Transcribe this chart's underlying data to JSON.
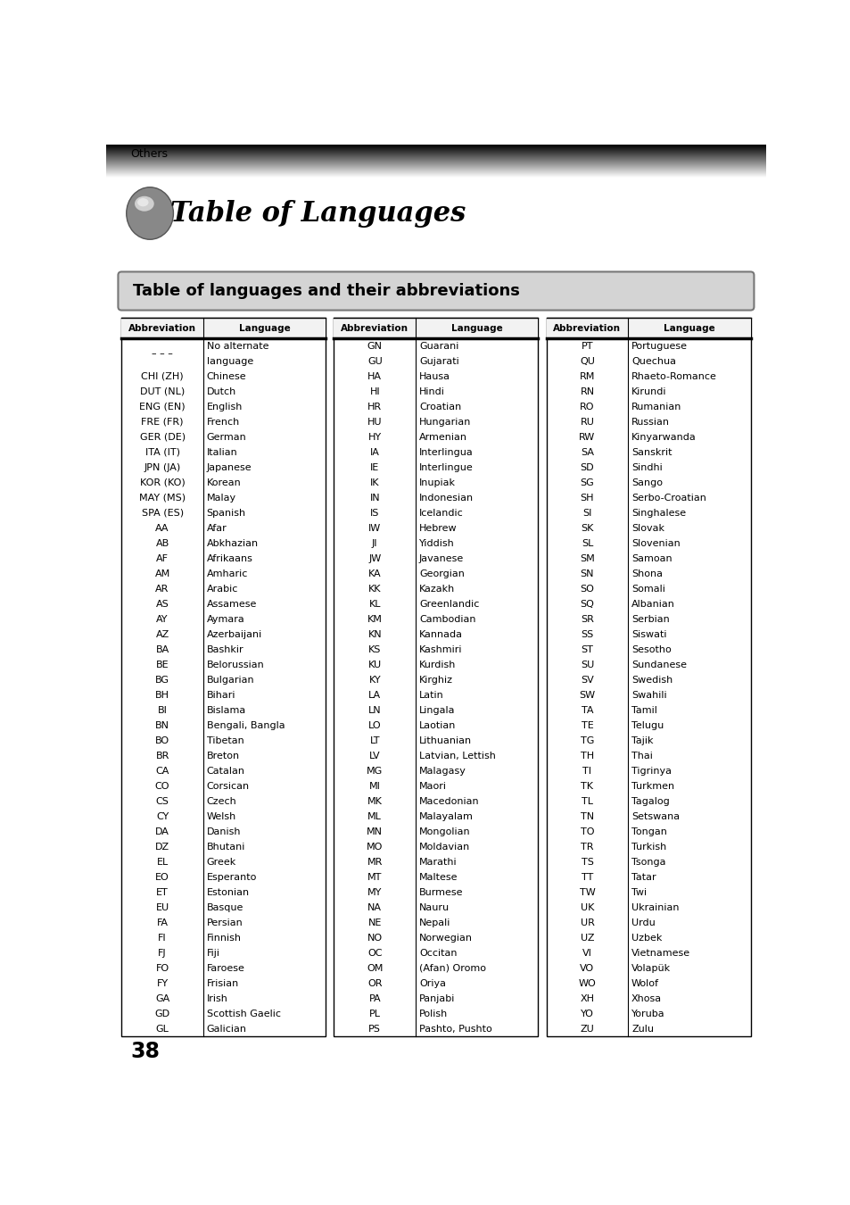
{
  "page_bg": "#ffffff",
  "others_label": "Others",
  "page_number": "38",
  "title_section": "Table of Languages",
  "subtitle": "Table of languages and their abbreviations",
  "col1_data": [
    [
      "– – –",
      "No alternate\nlanguage"
    ],
    [
      "CHI (ZH)",
      "Chinese"
    ],
    [
      "DUT (NL)",
      "Dutch"
    ],
    [
      "ENG (EN)",
      "English"
    ],
    [
      "FRE (FR)",
      "French"
    ],
    [
      "GER (DE)",
      "German"
    ],
    [
      "ITA (IT)",
      "Italian"
    ],
    [
      "JPN (JA)",
      "Japanese"
    ],
    [
      "KOR (KO)",
      "Korean"
    ],
    [
      "MAY (MS)",
      "Malay"
    ],
    [
      "SPA (ES)",
      "Spanish"
    ],
    [
      "AA",
      "Afar"
    ],
    [
      "AB",
      "Abkhazian"
    ],
    [
      "AF",
      "Afrikaans"
    ],
    [
      "AM",
      "Amharic"
    ],
    [
      "AR",
      "Arabic"
    ],
    [
      "AS",
      "Assamese"
    ],
    [
      "AY",
      "Aymara"
    ],
    [
      "AZ",
      "Azerbaijani"
    ],
    [
      "BA",
      "Bashkir"
    ],
    [
      "BE",
      "Belorussian"
    ],
    [
      "BG",
      "Bulgarian"
    ],
    [
      "BH",
      "Bihari"
    ],
    [
      "BI",
      "Bislama"
    ],
    [
      "BN",
      "Bengali, Bangla"
    ],
    [
      "BO",
      "Tibetan"
    ],
    [
      "BR",
      "Breton"
    ],
    [
      "CA",
      "Catalan"
    ],
    [
      "CO",
      "Corsican"
    ],
    [
      "CS",
      "Czech"
    ],
    [
      "CY",
      "Welsh"
    ],
    [
      "DA",
      "Danish"
    ],
    [
      "DZ",
      "Bhutani"
    ],
    [
      "EL",
      "Greek"
    ],
    [
      "EO",
      "Esperanto"
    ],
    [
      "ET",
      "Estonian"
    ],
    [
      "EU",
      "Basque"
    ],
    [
      "FA",
      "Persian"
    ],
    [
      "FI",
      "Finnish"
    ],
    [
      "FJ",
      "Fiji"
    ],
    [
      "FO",
      "Faroese"
    ],
    [
      "FY",
      "Frisian"
    ],
    [
      "GA",
      "Irish"
    ],
    [
      "GD",
      "Scottish Gaelic"
    ],
    [
      "GL",
      "Galician"
    ]
  ],
  "col2_data": [
    [
      "GN",
      "Guarani"
    ],
    [
      "GU",
      "Gujarati"
    ],
    [
      "HA",
      "Hausa"
    ],
    [
      "HI",
      "Hindi"
    ],
    [
      "HR",
      "Croatian"
    ],
    [
      "HU",
      "Hungarian"
    ],
    [
      "HY",
      "Armenian"
    ],
    [
      "IA",
      "Interlingua"
    ],
    [
      "IE",
      "Interlingue"
    ],
    [
      "IK",
      "Inupiak"
    ],
    [
      "IN",
      "Indonesian"
    ],
    [
      "IS",
      "Icelandic"
    ],
    [
      "IW",
      "Hebrew"
    ],
    [
      "JI",
      "Yiddish"
    ],
    [
      "JW",
      "Javanese"
    ],
    [
      "KA",
      "Georgian"
    ],
    [
      "KK",
      "Kazakh"
    ],
    [
      "KL",
      "Greenlandic"
    ],
    [
      "KM",
      "Cambodian"
    ],
    [
      "KN",
      "Kannada"
    ],
    [
      "KS",
      "Kashmiri"
    ],
    [
      "KU",
      "Kurdish"
    ],
    [
      "KY",
      "Kirghiz"
    ],
    [
      "LA",
      "Latin"
    ],
    [
      "LN",
      "Lingala"
    ],
    [
      "LO",
      "Laotian"
    ],
    [
      "LT",
      "Lithuanian"
    ],
    [
      "LV",
      "Latvian, Lettish"
    ],
    [
      "MG",
      "Malagasy"
    ],
    [
      "MI",
      "Maori"
    ],
    [
      "MK",
      "Macedonian"
    ],
    [
      "ML",
      "Malayalam"
    ],
    [
      "MN",
      "Mongolian"
    ],
    [
      "MO",
      "Moldavian"
    ],
    [
      "MR",
      "Marathi"
    ],
    [
      "MT",
      "Maltese"
    ],
    [
      "MY",
      "Burmese"
    ],
    [
      "NA",
      "Nauru"
    ],
    [
      "NE",
      "Nepali"
    ],
    [
      "NO",
      "Norwegian"
    ],
    [
      "OC",
      "Occitan"
    ],
    [
      "OM",
      "(Afan) Oromo"
    ],
    [
      "OR",
      "Oriya"
    ],
    [
      "PA",
      "Panjabi"
    ],
    [
      "PL",
      "Polish"
    ],
    [
      "PS",
      "Pashto, Pushto"
    ]
  ],
  "col3_data": [
    [
      "PT",
      "Portuguese"
    ],
    [
      "QU",
      "Quechua"
    ],
    [
      "RM",
      "Rhaeto-Romance"
    ],
    [
      "RN",
      "Kirundi"
    ],
    [
      "RO",
      "Rumanian"
    ],
    [
      "RU",
      "Russian"
    ],
    [
      "RW",
      "Kinyarwanda"
    ],
    [
      "SA",
      "Sanskrit"
    ],
    [
      "SD",
      "Sindhi"
    ],
    [
      "SG",
      "Sango"
    ],
    [
      "SH",
      "Serbo-Croatian"
    ],
    [
      "SI",
      "Singhalese"
    ],
    [
      "SK",
      "Slovak"
    ],
    [
      "SL",
      "Slovenian"
    ],
    [
      "SM",
      "Samoan"
    ],
    [
      "SN",
      "Shona"
    ],
    [
      "SO",
      "Somali"
    ],
    [
      "SQ",
      "Albanian"
    ],
    [
      "SR",
      "Serbian"
    ],
    [
      "SS",
      "Siswati"
    ],
    [
      "ST",
      "Sesotho"
    ],
    [
      "SU",
      "Sundanese"
    ],
    [
      "SV",
      "Swedish"
    ],
    [
      "SW",
      "Swahili"
    ],
    [
      "TA",
      "Tamil"
    ],
    [
      "TE",
      "Telugu"
    ],
    [
      "TG",
      "Tajik"
    ],
    [
      "TH",
      "Thai"
    ],
    [
      "TI",
      "Tigrinya"
    ],
    [
      "TK",
      "Turkmen"
    ],
    [
      "TL",
      "Tagalog"
    ],
    [
      "TN",
      "Setswana"
    ],
    [
      "TO",
      "Tongan"
    ],
    [
      "TR",
      "Turkish"
    ],
    [
      "TS",
      "Tsonga"
    ],
    [
      "TT",
      "Tatar"
    ],
    [
      "TW",
      "Twi"
    ],
    [
      "UK",
      "Ukrainian"
    ],
    [
      "UR",
      "Urdu"
    ],
    [
      "UZ",
      "Uzbek"
    ],
    [
      "VI",
      "Vietnamese"
    ],
    [
      "VO",
      "Volapük"
    ],
    [
      "WO",
      "Wolof"
    ],
    [
      "XH",
      "Xhosa"
    ],
    [
      "YO",
      "Yoruba"
    ],
    [
      "ZU",
      "Zulu"
    ]
  ]
}
